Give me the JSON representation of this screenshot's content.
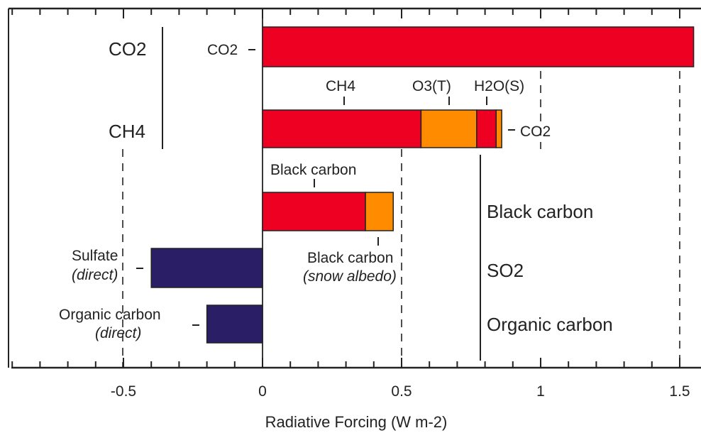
{
  "chart_data": {
    "type": "bar",
    "orientation": "horizontal",
    "stacked": true,
    "title": "",
    "xlabel": "Radiative Forcing",
    "xlabel_unit": "(W m-2)",
    "ylabel": "",
    "xlim": [
      -0.5,
      1.5
    ],
    "xticks": [
      "-0.5",
      "0",
      "0.5",
      "1",
      "1.5"
    ],
    "grid": false,
    "legend": "none",
    "colors": {
      "red": "#ee0022",
      "orange": "#ff8c00",
      "navy": "#2a1f66",
      "axis": "#222222"
    },
    "emitted_species": [
      "CO2",
      "CH4",
      "Black carbon",
      "SO2",
      "Organic carbon"
    ],
    "bars": [
      {
        "emitted": "CO2",
        "segments": [
          {
            "label": "CO2",
            "start": 0,
            "end": 1.55,
            "color": "red"
          }
        ]
      },
      {
        "emitted": "CH4",
        "segments": [
          {
            "label": "CH4",
            "start": 0,
            "end": 0.57,
            "color": "red"
          },
          {
            "label": "O3(T)",
            "start": 0.57,
            "end": 0.77,
            "color": "orange"
          },
          {
            "label": "H2O(S)",
            "start": 0.77,
            "end": 0.84,
            "color": "red"
          },
          {
            "label": "CO2",
            "start": 0.84,
            "end": 0.86,
            "color": "orange"
          }
        ]
      },
      {
        "emitted": "Black carbon",
        "segments": [
          {
            "label": "Black carbon",
            "start": 0,
            "end": 0.37,
            "color": "red"
          },
          {
            "label": "Black carbon (snow albedo)",
            "start": 0.37,
            "end": 0.47,
            "color": "orange"
          }
        ]
      },
      {
        "emitted": "SO2",
        "segments": [
          {
            "label": "Sulfate (direct)",
            "start": -0.4,
            "end": 0,
            "color": "navy"
          }
        ]
      },
      {
        "emitted": "Organic carbon",
        "segments": [
          {
            "label": "Organic carbon (direct)",
            "start": -0.2,
            "end": 0,
            "color": "navy"
          }
        ]
      }
    ]
  },
  "text": {
    "co2_left": "CO2",
    "ch4_left": "CH4",
    "co2_seg": "CO2",
    "ch4_seg": "CH4",
    "o3t_seg": "O3(T)",
    "h2os_seg": "H2O(S)",
    "co2_tip": "CO2",
    "bc_seg": "Black carbon",
    "bc_snow_1": "Black carbon",
    "bc_snow_2": "(snow albedo)",
    "sulfate_1": "Sulfate",
    "sulfate_2": "(direct)",
    "oc_1": "Organic carbon",
    "oc_2": "(direct)",
    "bc_right": "Black carbon",
    "so2_right": "SO2",
    "oc_right": "Organic carbon",
    "x_title": "Radiative Forcing  (W m-2)"
  }
}
